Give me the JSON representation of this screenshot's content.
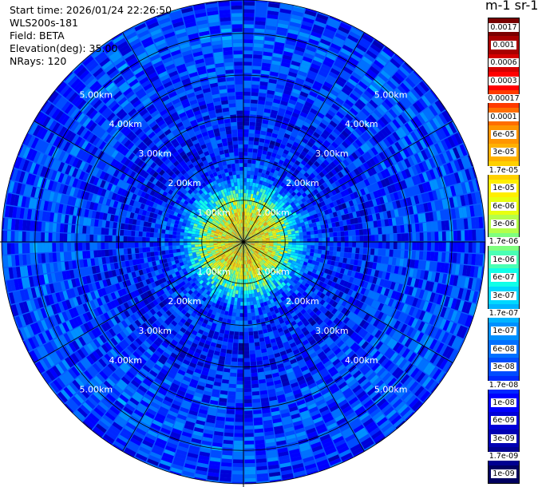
{
  "header": {
    "start_time": "Start time: 2026/01/24 22:26:50",
    "instrument": "WLS200s-181",
    "field": "Field: BETA",
    "elevation": "Elevation(deg): 35.00",
    "nrays": "NRays: 120"
  },
  "colorbar": {
    "title": "m-1 sr-1",
    "labels": [
      "0.0017",
      "0.001",
      "0.0006",
      "0.0003",
      "0.00017",
      "0.0001",
      "6e-05",
      "3e-05",
      "1.7e-05",
      "1e-05",
      "6e-06",
      "3e-06",
      "1.7e-06",
      "1e-06",
      "6e-07",
      "3e-07",
      "1.7e-07",
      "1e-07",
      "6e-08",
      "3e-08",
      "1.7e-08",
      "1e-08",
      "6e-09",
      "3e-09",
      "1.7e-09",
      "1e-09"
    ],
    "colors": [
      "#7a0000",
      "#a80000",
      "#d40000",
      "#ff0000",
      "#ff3a00",
      "#ff6e00",
      "#ff9500",
      "#ffb000",
      "#ffd000",
      "#ffee00",
      "#e8ff10",
      "#b4ff4a",
      "#7fff7f",
      "#4affb4",
      "#10ffe8",
      "#00d8ff",
      "#00b4ff",
      "#0090ff",
      "#0070ff",
      "#004cff",
      "#0028ff",
      "#0000ff",
      "#0000d8",
      "#0000b4",
      "#000090",
      "#000060"
    ]
  },
  "chart_data": {
    "type": "heatmap",
    "projection": "polar PPI",
    "field": "BETA",
    "elevation_deg": 35.0,
    "n_rays": 120,
    "range_unit": "km",
    "max_range_km": 5.8,
    "range_ring_labels": [
      "1.00km",
      "2.00km",
      "3.00km",
      "4.00km",
      "5.00km"
    ],
    "azimuth_lines_deg": [
      0,
      30,
      60,
      90,
      120,
      150,
      180,
      210,
      240,
      270,
      300,
      330
    ],
    "value_scale": "log",
    "value_range": [
      1e-09,
      0.0017
    ],
    "radial_profile": [
      {
        "range_km": 0.6,
        "value": 1e-05
      },
      {
        "range_km": 1.0,
        "value": 1.7e-06
      },
      {
        "range_km": 1.6,
        "value": 3e-08
      },
      {
        "range_km": 2.5,
        "value": 1e-08
      },
      {
        "range_km": 3.5,
        "value": 1.7e-08
      },
      {
        "range_km": 5.0,
        "value": 3e-08
      },
      {
        "range_km": 5.8,
        "value": 1.7e-08
      }
    ]
  }
}
